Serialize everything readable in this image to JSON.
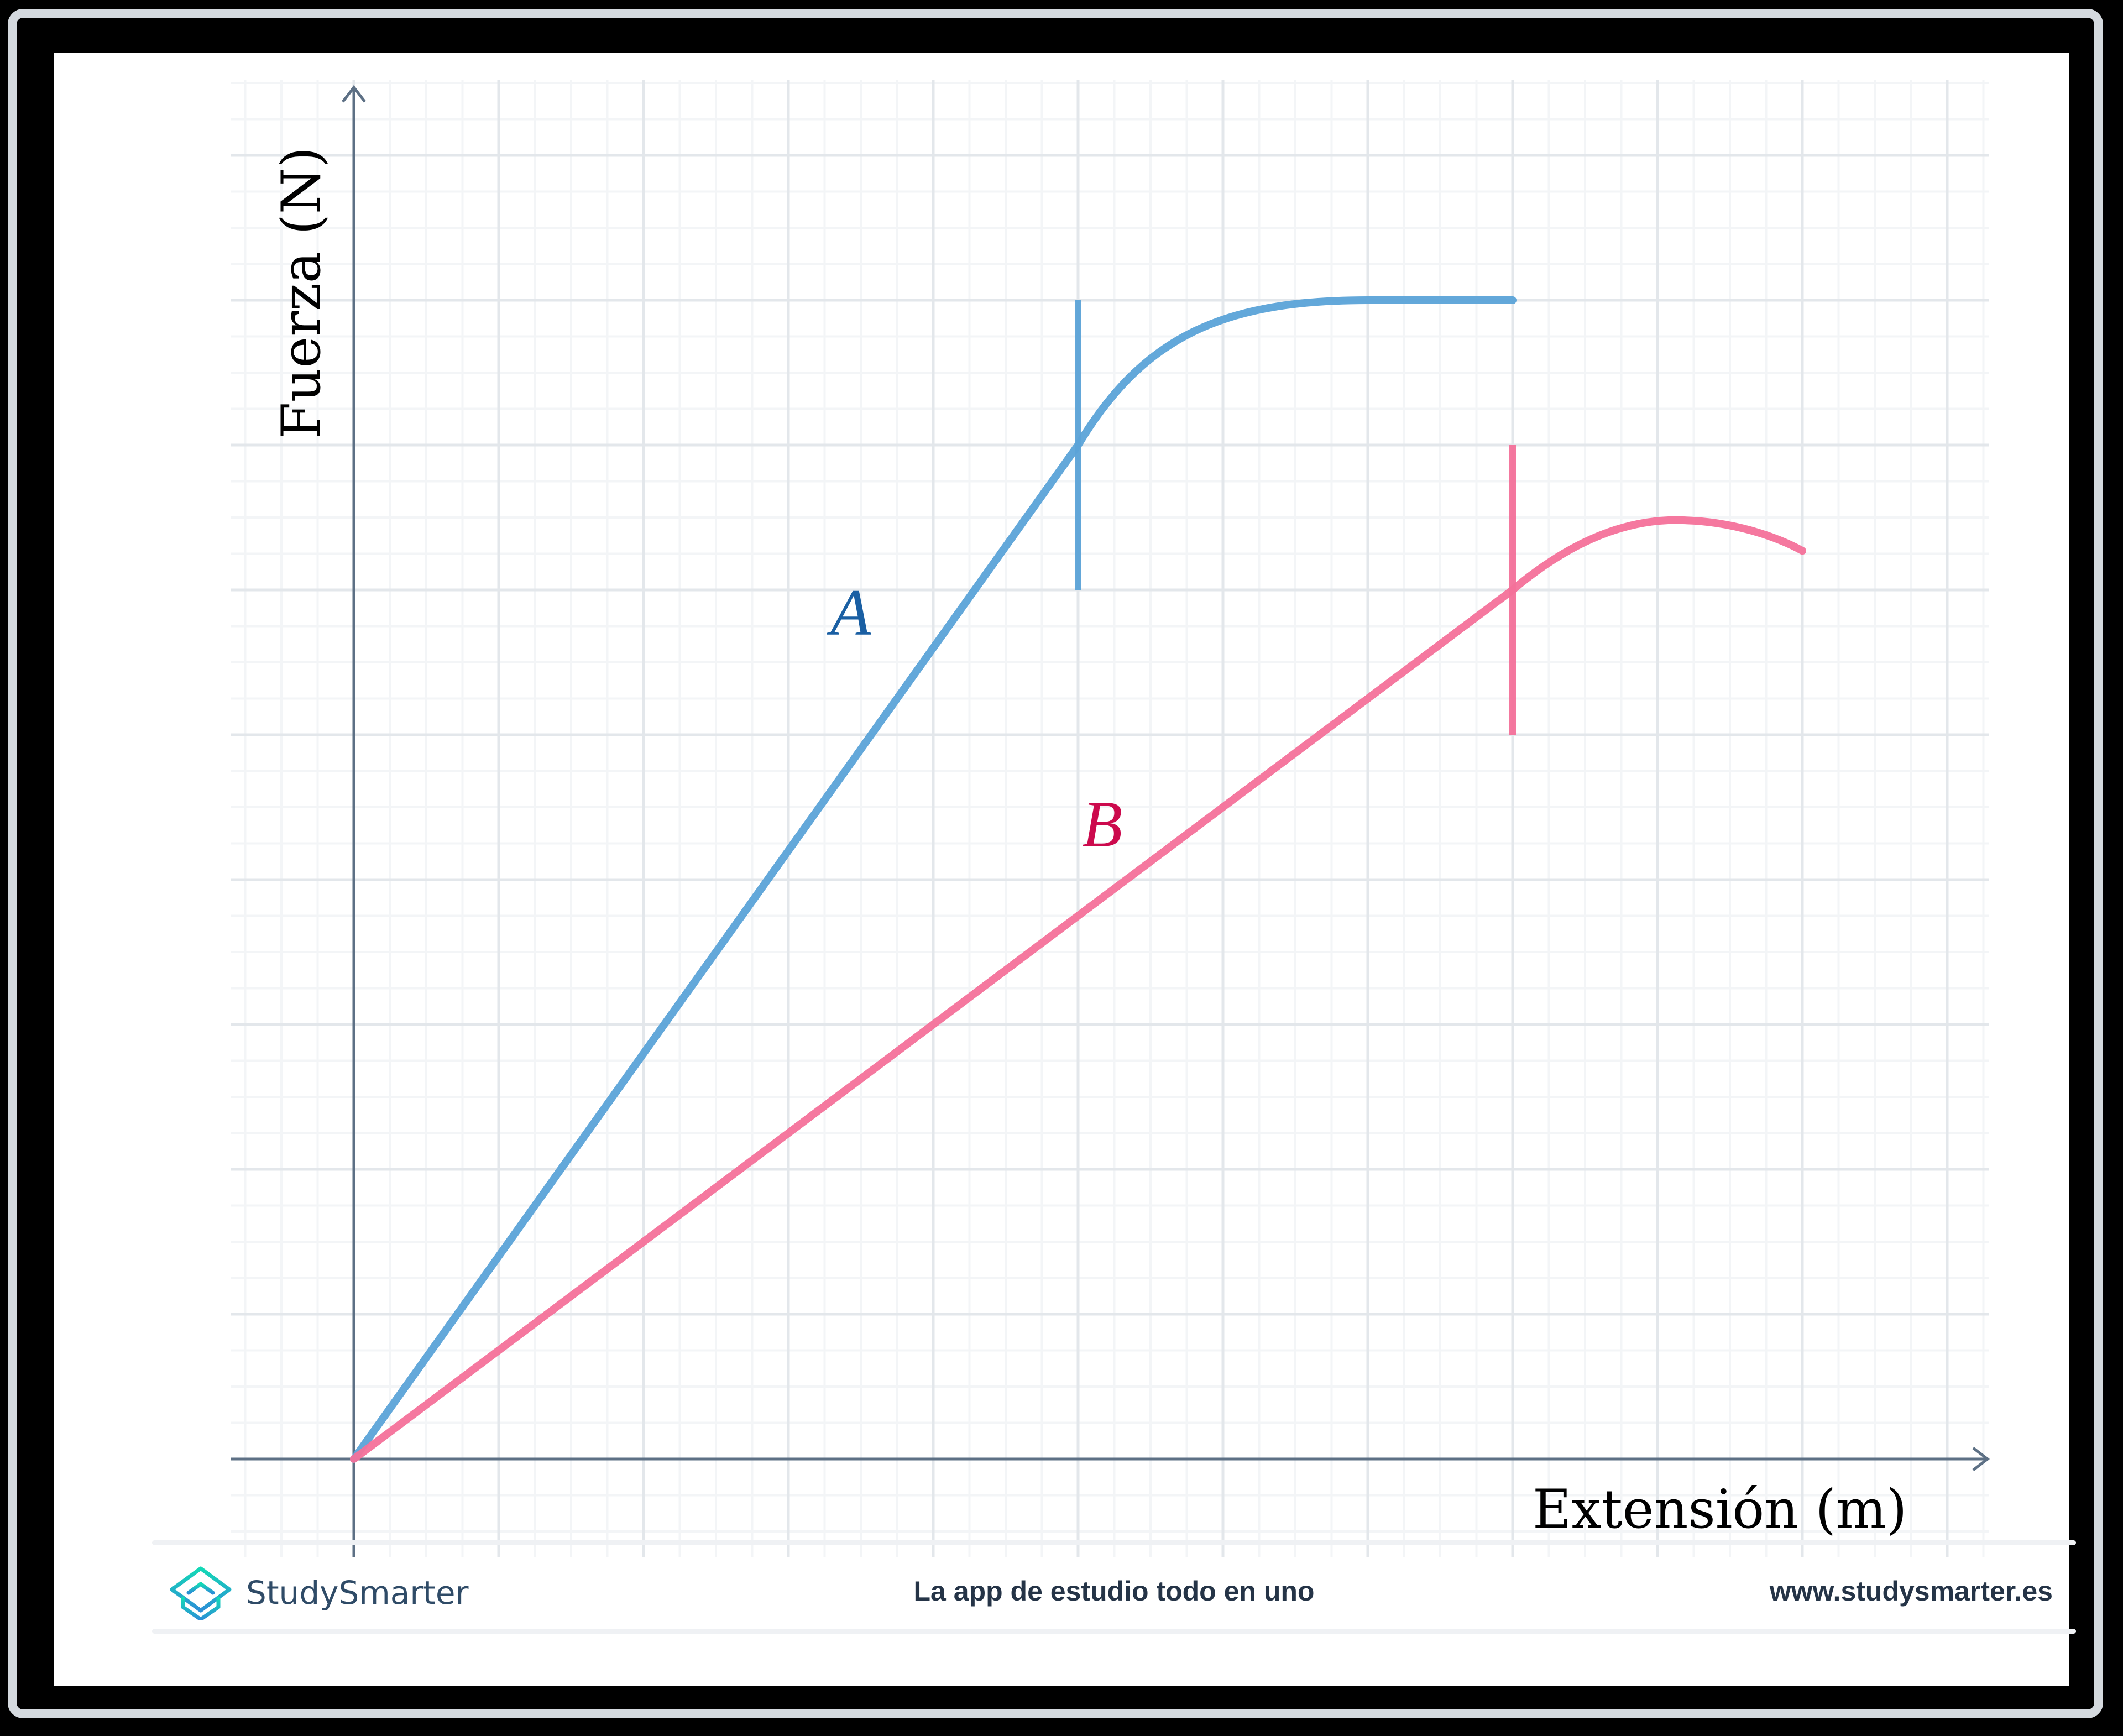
{
  "chart_data": {
    "type": "line",
    "title": "",
    "xlabel": "Extensión (m)",
    "ylabel": "Fuerza (N)",
    "xlim": [
      -0.85,
      11.3
    ],
    "ylim": [
      -0.7,
      9.3
    ],
    "grid": true,
    "tick_labels_shown": false,
    "series": [
      {
        "name": "A",
        "color": "#5ba3d8",
        "label_color": "#1a5fa3",
        "points": [
          [
            0,
            0
          ],
          [
            5,
            7
          ],
          [
            5.5,
            7.6
          ],
          [
            6,
            7.85
          ],
          [
            7,
            8
          ],
          [
            8,
            8
          ]
        ],
        "limit_marker": {
          "x": 5,
          "y_from": 6,
          "y_to": 8
        }
      },
      {
        "name": "B",
        "color": "#f4719a",
        "label_color": "#cc0a4d",
        "points": [
          [
            0,
            0
          ],
          [
            8,
            6
          ],
          [
            8.5,
            6.35
          ],
          [
            9.2,
            6.48
          ],
          [
            10,
            6.3
          ]
        ],
        "limit_marker": {
          "x": 8,
          "y_from": 5,
          "y_to": 7
        }
      }
    ],
    "annotations": [
      {
        "text": "A",
        "x": 3.5,
        "y": 5.8
      },
      {
        "text": "B",
        "x": 5.25,
        "y": 4.35
      }
    ]
  },
  "axes": {
    "x_label": "Extensión (m)",
    "y_label": "Fuerza (N)"
  },
  "labels": {
    "a": "A",
    "b": "B"
  },
  "footer": {
    "brand": "StudySmarter",
    "tagline": "La app de estudio todo en uno",
    "url": "www.studysmarter.es"
  },
  "colors": {
    "axis": "#5d7085",
    "grid_major": "#e3e7eb",
    "grid_minor": "#f3f5f7",
    "curve_a": "#5ba3d8",
    "curve_b": "#f4719a",
    "label_a": "#1a5fa3",
    "label_b": "#cc0a4d",
    "frame_border": "#d4d9de",
    "footer_text": "#253447",
    "brand_text": "#2f4b67"
  }
}
